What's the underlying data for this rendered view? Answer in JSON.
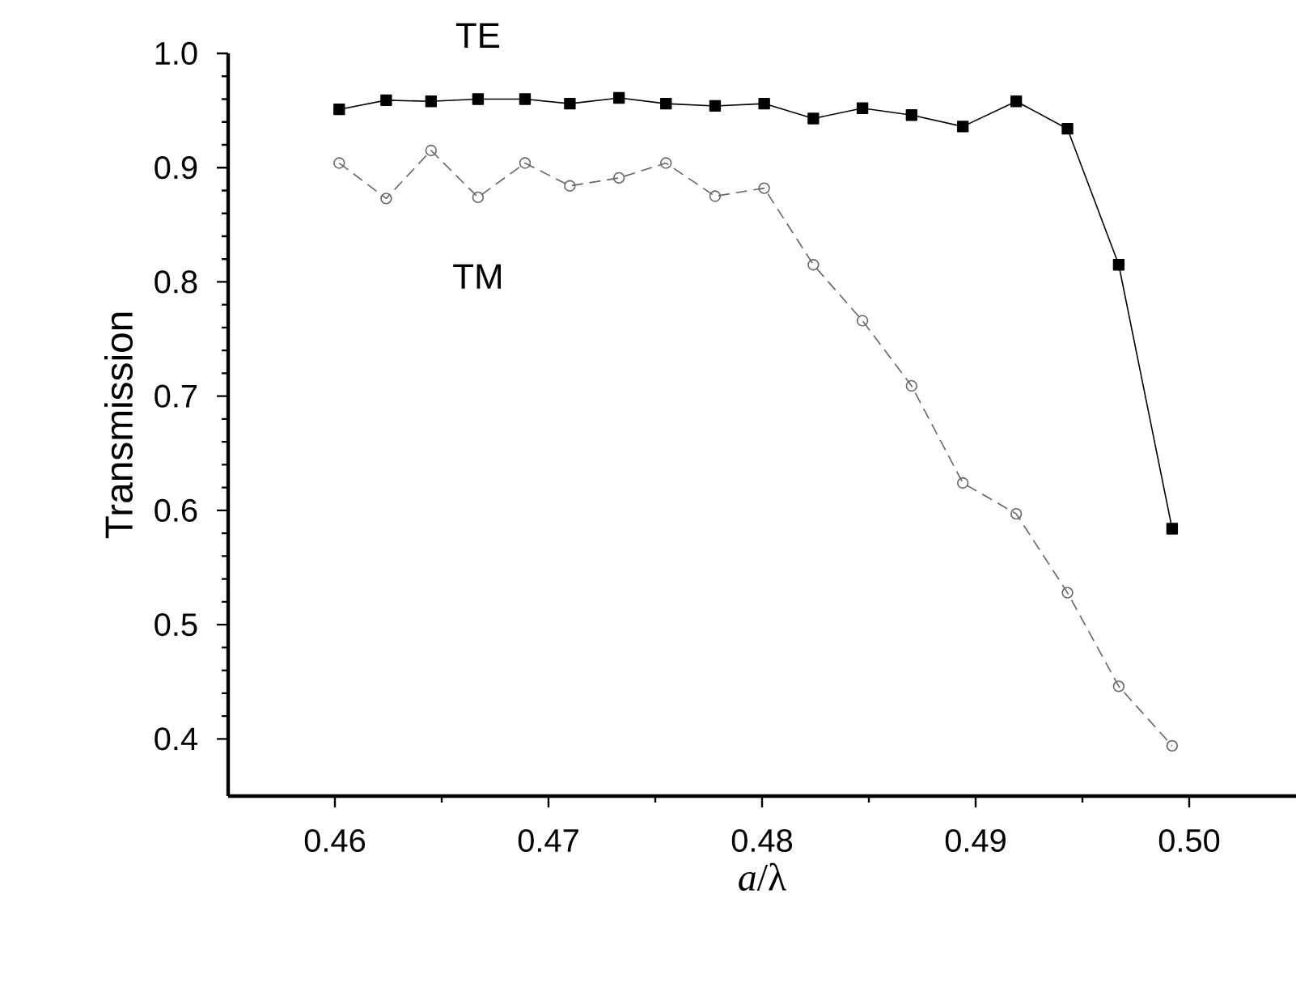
{
  "chart_data": {
    "type": "line",
    "xlabel": "*a*/λ",
    "ylabel": "Transmission",
    "xlim": [
      0.455,
      0.505
    ],
    "ylim": [
      0.35,
      1.0
    ],
    "xticks": [
      {
        "value": 0.46,
        "label": "0.46"
      },
      {
        "value": 0.47,
        "label": "0.47"
      },
      {
        "value": 0.48,
        "label": "0.48"
      },
      {
        "value": 0.49,
        "label": "0.49"
      },
      {
        "value": 0.5,
        "label": "0.50"
      }
    ],
    "yticks": [
      {
        "value": 0.4,
        "label": "0.4"
      },
      {
        "value": 0.5,
        "label": "0.5"
      },
      {
        "value": 0.6,
        "label": "0.6"
      },
      {
        "value": 0.7,
        "label": "0.7"
      },
      {
        "value": 0.8,
        "label": "0.8"
      },
      {
        "value": 0.9,
        "label": "0.9"
      },
      {
        "value": 1.0,
        "label": "1.0"
      }
    ],
    "x": [
      0.4602,
      0.4624,
      0.4645,
      0.4667,
      0.4689,
      0.471,
      0.4733,
      0.4755,
      0.4778,
      0.4801,
      0.4824,
      0.4847,
      0.487,
      0.4894,
      0.4919,
      0.4943,
      0.4967,
      0.4992
    ],
    "grid": false,
    "legend": false,
    "series": [
      {
        "name": "TE",
        "color": "#000000",
        "marker": "square",
        "line_style": "solid",
        "values": [
          0.951,
          0.959,
          0.958,
          0.96,
          0.96,
          0.956,
          0.961,
          0.956,
          0.954,
          0.956,
          0.943,
          0.952,
          0.946,
          0.936,
          0.958,
          0.934,
          0.815,
          0.584
        ]
      },
      {
        "name": "TM",
        "color": "#666666",
        "marker": "circle",
        "line_style": "dashed",
        "values": [
          0.904,
          0.873,
          0.915,
          0.874,
          0.904,
          0.884,
          0.891,
          0.904,
          0.875,
          0.882,
          0.815,
          0.766,
          0.709,
          0.624,
          0.597,
          0.528,
          0.446,
          0.394
        ]
      }
    ]
  }
}
